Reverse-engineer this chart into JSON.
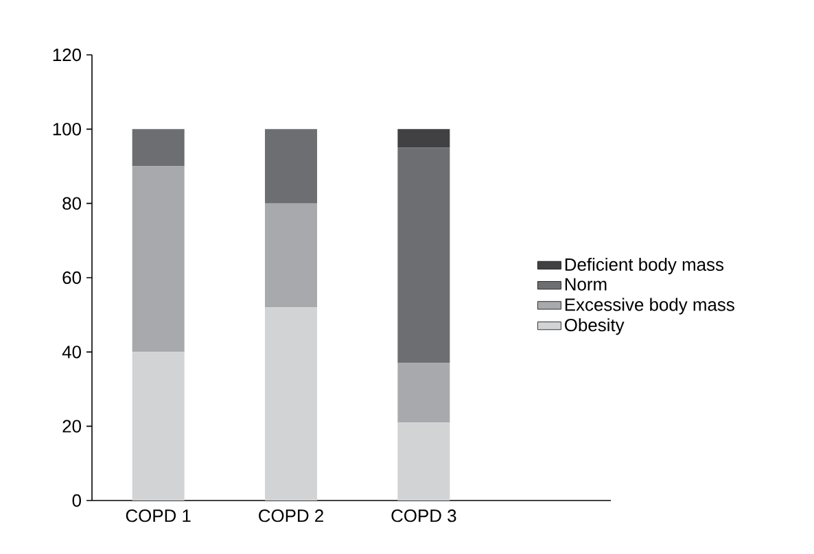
{
  "chart_data": {
    "type": "bar",
    "stacked": true,
    "categories": [
      "COPD 1",
      "COPD 2",
      "COPD 3"
    ],
    "series": [
      {
        "name": "Obesity",
        "color": "#d1d3d4",
        "values": [
          40,
          52,
          21
        ]
      },
      {
        "name": "Excessive body mass",
        "color": "#a7a9ac",
        "values": [
          50,
          28,
          16
        ]
      },
      {
        "name": "Norm",
        "color": "#6d6e71",
        "values": [
          10,
          20,
          58
        ]
      },
      {
        "name": "Deficient body mass",
        "color": "#414042",
        "values": [
          0,
          0,
          5
        ]
      }
    ],
    "ylim": [
      0,
      120
    ],
    "yticks": [
      0,
      20,
      40,
      60,
      80,
      100,
      120
    ],
    "grid": false,
    "legend": "right"
  }
}
